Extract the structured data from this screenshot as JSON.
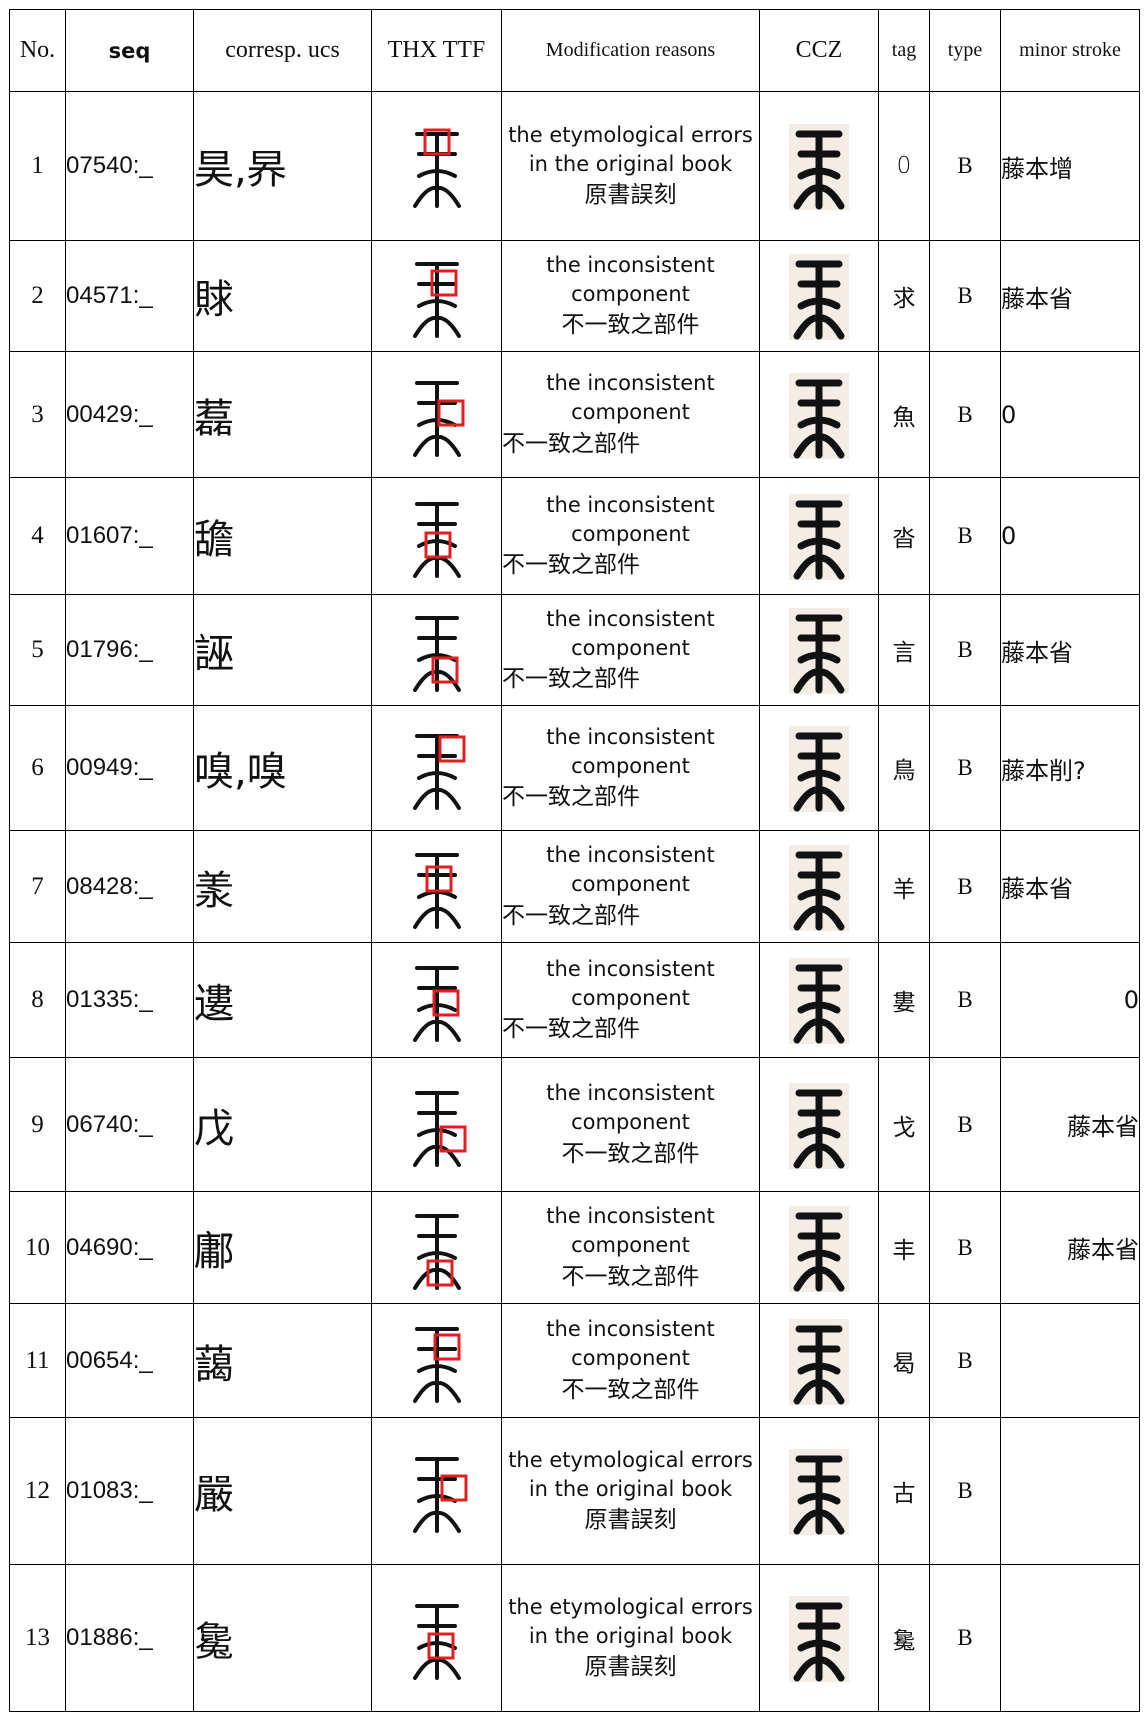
{
  "table": {
    "header": [
      "No.",
      "seq",
      "corresp. ucs",
      "THX TTF",
      "Modification reasons",
      "CCZ",
      "tag",
      "type",
      "minor stroke"
    ],
    "rows": [
      {
        "no": "1",
        "seq": "07540:_",
        "ucs": "昊,昦",
        "reason_en": "the etymological errors in the original book",
        "reason_zh": "原書誤刻",
        "tag": "0",
        "type": "B",
        "minor": "藤本增"
      },
      {
        "no": "2",
        "seq": "04571:_",
        "ucs": "賕",
        "reason_en": "the inconsistent component",
        "reason_zh": "不一致之部件",
        "tag": "求",
        "type": "B",
        "minor": "藤本省"
      },
      {
        "no": "3",
        "seq": "00429:_",
        "ucs": "藞",
        "reason_en": "the inconsistent component",
        "reason_zh": "不一致之部件",
        "tag": "魚",
        "type": "B",
        "minor": "0"
      },
      {
        "no": "4",
        "seq": "01607:_",
        "ucs": "舚",
        "reason_en": "the inconsistent component",
        "reason_zh": "不一致之部件",
        "tag": "沓",
        "type": "B",
        "minor": "0"
      },
      {
        "no": "5",
        "seq": "01796:_",
        "ucs": "誣",
        "reason_en": "the inconsistent component",
        "reason_zh": "不一致之部件",
        "tag": "言",
        "type": "B",
        "minor": "藤本省"
      },
      {
        "no": "6",
        "seq": "00949:_",
        "ucs": "嗅,嗅",
        "reason_en": "the inconsistent component",
        "reason_zh": "不一致之部件",
        "tag": "鳥",
        "type": "B",
        "minor": "藤本削?"
      },
      {
        "no": "7",
        "seq": "08428:_",
        "ucs": "羕",
        "reason_en": "the inconsistent component",
        "reason_zh": "不一致之部件",
        "tag": "羊",
        "type": "B",
        "minor": "藤本省"
      },
      {
        "no": "8",
        "seq": "01335:_",
        "ucs": "遱",
        "reason_en": "the inconsistent component",
        "reason_zh": "不一致之部件",
        "tag": "婁",
        "type": "B",
        "minor": "0"
      },
      {
        "no": "9",
        "seq": "06740:_",
        "ucs": "戊",
        "reason_en": "the inconsistent component",
        "reason_zh": "不一致之部件",
        "tag": "戈",
        "type": "B",
        "minor": "藤本省"
      },
      {
        "no": "10",
        "seq": "04690:_",
        "ucs": "鄘",
        "reason_en": "the inconsistent component",
        "reason_zh": "不一致之部件",
        "tag": "丰",
        "type": "B",
        "minor": "藤本省"
      },
      {
        "no": "11",
        "seq": "00654:_",
        "ucs": "藹",
        "reason_en": "the inconsistent component",
        "reason_zh": "不一致之部件",
        "tag": "曷",
        "type": "B"
      },
      {
        "no": "12",
        "seq": "01083:_",
        "ucs": "嚴",
        "reason_en": "the etymological errors in the original book",
        "reason_zh": "原書誤刻",
        "tag": "古",
        "type": "B"
      },
      {
        "no": "13",
        "seq": "01886:_",
        "ucs": "毚",
        "reason_en": "the etymological errors in the original book",
        "reason_zh": "原書誤刻",
        "tag": "毚",
        "type": "B"
      }
    ]
  }
}
